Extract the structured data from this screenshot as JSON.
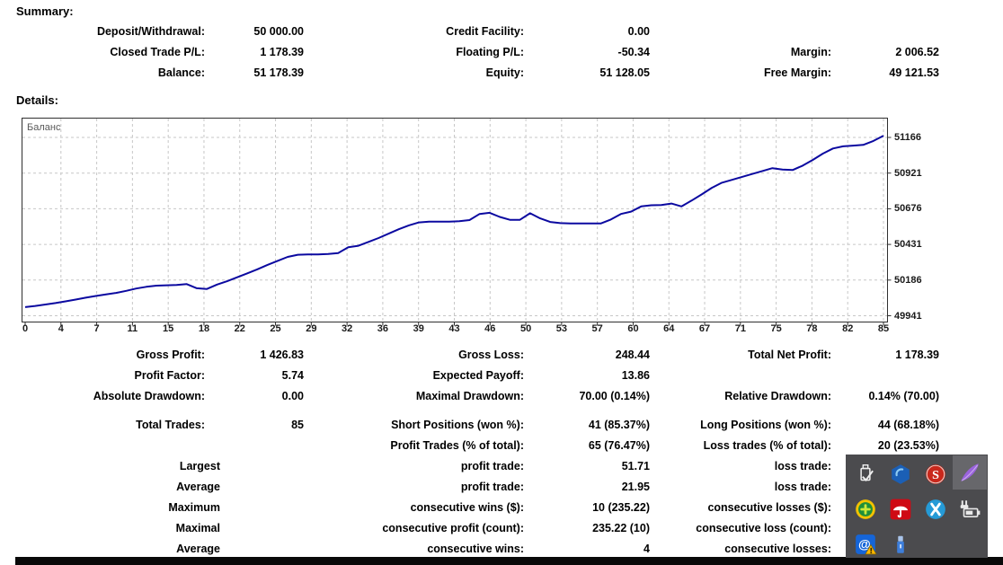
{
  "summary": {
    "heading": "Summary:",
    "rows": [
      {
        "cells": [
          "Deposit/Withdrawal:",
          "50 000.00",
          "Credit Facility:",
          "0.00",
          "",
          ""
        ]
      },
      {
        "cells": [
          "Closed Trade P/L:",
          "1 178.39",
          "Floating P/L:",
          "-50.34",
          "Margin:",
          "2 006.52"
        ]
      },
      {
        "cells": [
          "Balance:",
          "51 178.39",
          "Equity:",
          "51 128.05",
          "Free Margin:",
          "49 121.53"
        ]
      }
    ]
  },
  "details": {
    "heading": "Details:",
    "rows": [
      {
        "cells": [
          "Gross Profit:",
          "1 426.83",
          "Gross Loss:",
          "248.44",
          "Total Net Profit:",
          "1 178.39"
        ],
        "variant": "std"
      },
      {
        "cells": [
          "Profit Factor:",
          "5.74",
          "Expected Payoff:",
          "13.86",
          "",
          ""
        ],
        "variant": "std"
      },
      {
        "cells": [
          "Absolute Drawdown:",
          "0.00",
          "Maximal Drawdown:",
          "70.00 (0.14%)",
          "Relative Drawdown:",
          "0.14% (70.00)"
        ],
        "variant": "std"
      },
      {
        "cells": [
          "Total Trades:",
          "85",
          "Short Positions (won %):",
          "41 (85.37%)",
          "Long Positions (won %):",
          "44 (68.18%)"
        ],
        "variant": "std",
        "gap_before": true
      },
      {
        "cells": [
          "",
          "",
          "Profit Trades (% of total):",
          "65 (76.47%)",
          "Loss trades (% of total):",
          "20 (23.53%)"
        ],
        "variant": "std"
      },
      {
        "cells": [
          "Largest",
          "",
          "profit trade:",
          "51.71",
          "loss trade:",
          ""
        ],
        "variant": "wide1"
      },
      {
        "cells": [
          "Average",
          "",
          "profit trade:",
          "21.95",
          "loss trade:",
          ""
        ],
        "variant": "wide1"
      },
      {
        "cells": [
          "Maximum",
          "",
          "consecutive wins ($):",
          "10 (235.22)",
          "consecutive losses ($):",
          ""
        ],
        "variant": "wide1"
      },
      {
        "cells": [
          "Maximal",
          "",
          "consecutive profit (count):",
          "235.22 (10)",
          "consecutive loss (count):",
          ""
        ],
        "variant": "wide1"
      },
      {
        "cells": [
          "Average",
          "",
          "consecutive wins:",
          "4",
          "consecutive losses:",
          ""
        ],
        "variant": "wide1"
      }
    ]
  },
  "chart_data": {
    "type": "line",
    "title": "Баланс",
    "legend_label": "Баланс",
    "grid": true,
    "line_color": "#0b09a0",
    "x_range": [
      0,
      85
    ],
    "x_ticks": [
      0,
      4,
      7,
      11,
      15,
      18,
      22,
      25,
      29,
      32,
      36,
      39,
      43,
      46,
      50,
      53,
      57,
      60,
      64,
      67,
      71,
      75,
      78,
      82,
      85
    ],
    "y_ticks": [
      49941,
      50186,
      50431,
      50676,
      50921,
      51166
    ],
    "series": [
      {
        "name": "Баланс",
        "values": [
          50000,
          50008,
          50018,
          50028,
          50040,
          50052,
          50065,
          50077,
          50088,
          50098,
          50112,
          50128,
          50140,
          50148,
          50150,
          50152,
          50158,
          50130,
          50125,
          50155,
          50178,
          50205,
          50232,
          50260,
          50290,
          50318,
          50345,
          50360,
          50362,
          50362,
          50365,
          50372,
          50412,
          50422,
          50448,
          50475,
          50505,
          50535,
          50562,
          50582,
          50588,
          50588,
          50588,
          50590,
          50598,
          50640,
          50648,
          50620,
          50600,
          50600,
          50645,
          50610,
          50585,
          50577,
          50575,
          50575,
          50575,
          50575,
          50602,
          50640,
          50656,
          50692,
          50700,
          50702,
          50712,
          50692,
          50732,
          50775,
          50820,
          50855,
          50875,
          50895,
          50915,
          50935,
          50955,
          50945,
          50942,
          50972,
          51012,
          51055,
          51090,
          51105,
          51110,
          51115,
          51142,
          51178
        ]
      }
    ]
  },
  "tray": {
    "icons": [
      "safely-remove-hardware",
      "blue-orb",
      "red-s",
      "feather",
      "green-plus",
      "avira-umbrella",
      "blue-x",
      "power-plug",
      "email-warning",
      "usb-drive"
    ]
  },
  "colors": {
    "balance_line": "#0b09a0",
    "chart_border": "#303030",
    "grid_dash": "#c7c7c7",
    "tray_bg": "#4b4b4e",
    "taskbar": "#090909"
  }
}
